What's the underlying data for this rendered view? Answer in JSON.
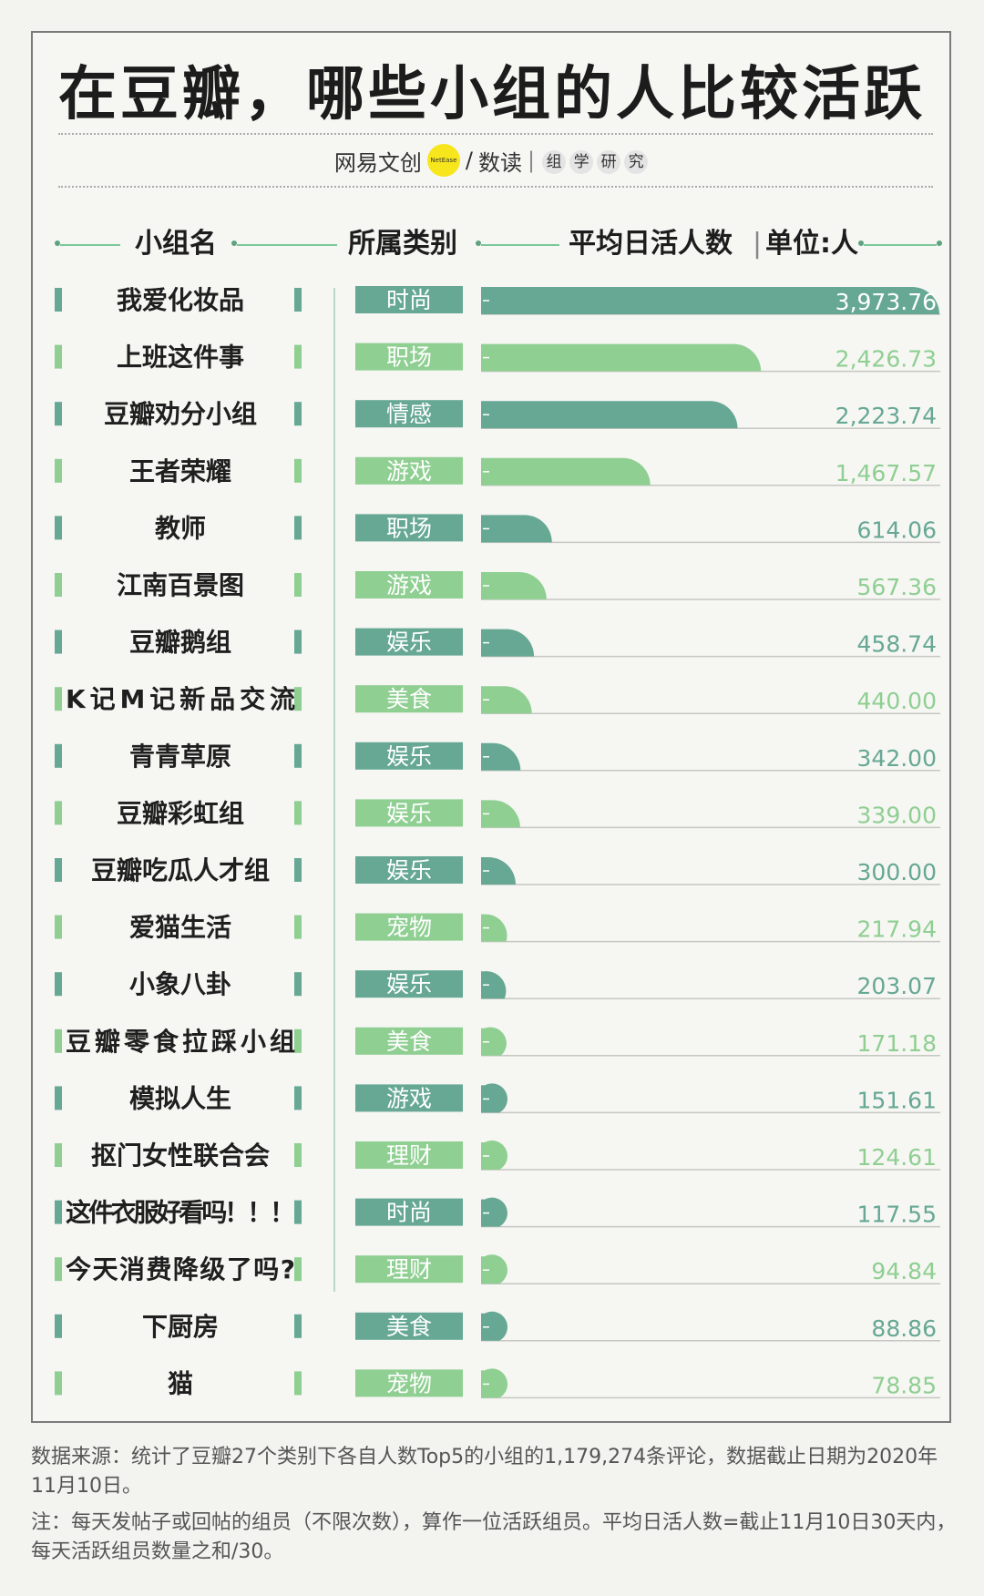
{
  "title": "在豆瓣，哪些小组的人比较活跃",
  "brand": {
    "name_part1": "网易文创",
    "logo_text": "NetEase",
    "slash": "/",
    "name_part2": "数读",
    "divider": "|",
    "research": [
      "组",
      "学",
      "研",
      "究"
    ]
  },
  "header": {
    "group_col": "小组名",
    "category_col": "所属类别",
    "value_col": "平均日活人数",
    "divider": "|",
    "unit": "单位:人"
  },
  "colors": {
    "dark": "#66a894",
    "light": "#8fcf92",
    "frame": "#7a7a7a",
    "background": "#f3f3f0"
  },
  "chart_data": {
    "type": "bar",
    "orientation": "horizontal",
    "title": "在豆瓣，哪些小组的人比较活跃",
    "ylabel": "平均日活人数",
    "unit": "单位:人",
    "xlim": [
      0,
      3973.76
    ],
    "categories": [
      "我爱化妆品",
      "上班这件事",
      "豆瓣劝分小组",
      "王者荣耀",
      "教师",
      "江南百景图",
      "豆瓣鹅组",
      "K记M记新品交流",
      "青青草原",
      "豆瓣彩虹组",
      "豆瓣吃瓜人才组",
      "爱猫生活",
      "小象八卦",
      "豆瓣零食拉踩小组",
      "模拟人生",
      "抠门女性联合会",
      "这件衣服好看吗！！！",
      "今天消费降级了吗?",
      "下厨房",
      "猫"
    ],
    "group_types": [
      "时尚",
      "职场",
      "情感",
      "游戏",
      "职场",
      "游戏",
      "娱乐",
      "美食",
      "娱乐",
      "娱乐",
      "娱乐",
      "宠物",
      "娱乐",
      "美食",
      "游戏",
      "理财",
      "时尚",
      "理财",
      "美食",
      "宠物"
    ],
    "values": [
      3973.76,
      2426.73,
      2223.74,
      1467.57,
      614.06,
      567.36,
      458.74,
      440.0,
      342.0,
      339.0,
      300.0,
      217.94,
      203.07,
      171.18,
      151.61,
      124.61,
      117.55,
      94.84,
      88.86,
      78.85
    ],
    "value_labels": [
      "3,973.76",
      "2,426.73",
      "2,223.74",
      "1,467.57",
      "614.06",
      "567.36",
      "458.74",
      "440.00",
      "342.00",
      "339.00",
      "300.00",
      "217.94",
      "203.07",
      "171.18",
      "151.61",
      "124.61",
      "117.55",
      "94.84",
      "88.86",
      "78.85"
    ],
    "shade": [
      "dark",
      "light",
      "dark",
      "light",
      "dark",
      "light",
      "dark",
      "light",
      "dark",
      "light",
      "dark",
      "light",
      "dark",
      "light",
      "dark",
      "light",
      "dark",
      "light",
      "dark",
      "light"
    ]
  },
  "notes": {
    "source": "数据来源：统计了豆瓣27个类别下各自人数Top5的小组的1,179,274条评论，数据截止日期为2020年11月10日。",
    "definition": "注：每天发帖子或回帖的组员（不限次数），算作一位活跃组员。平均日活人数=截止11月10日30天内，每天活跃组员数量之和/30。"
  }
}
